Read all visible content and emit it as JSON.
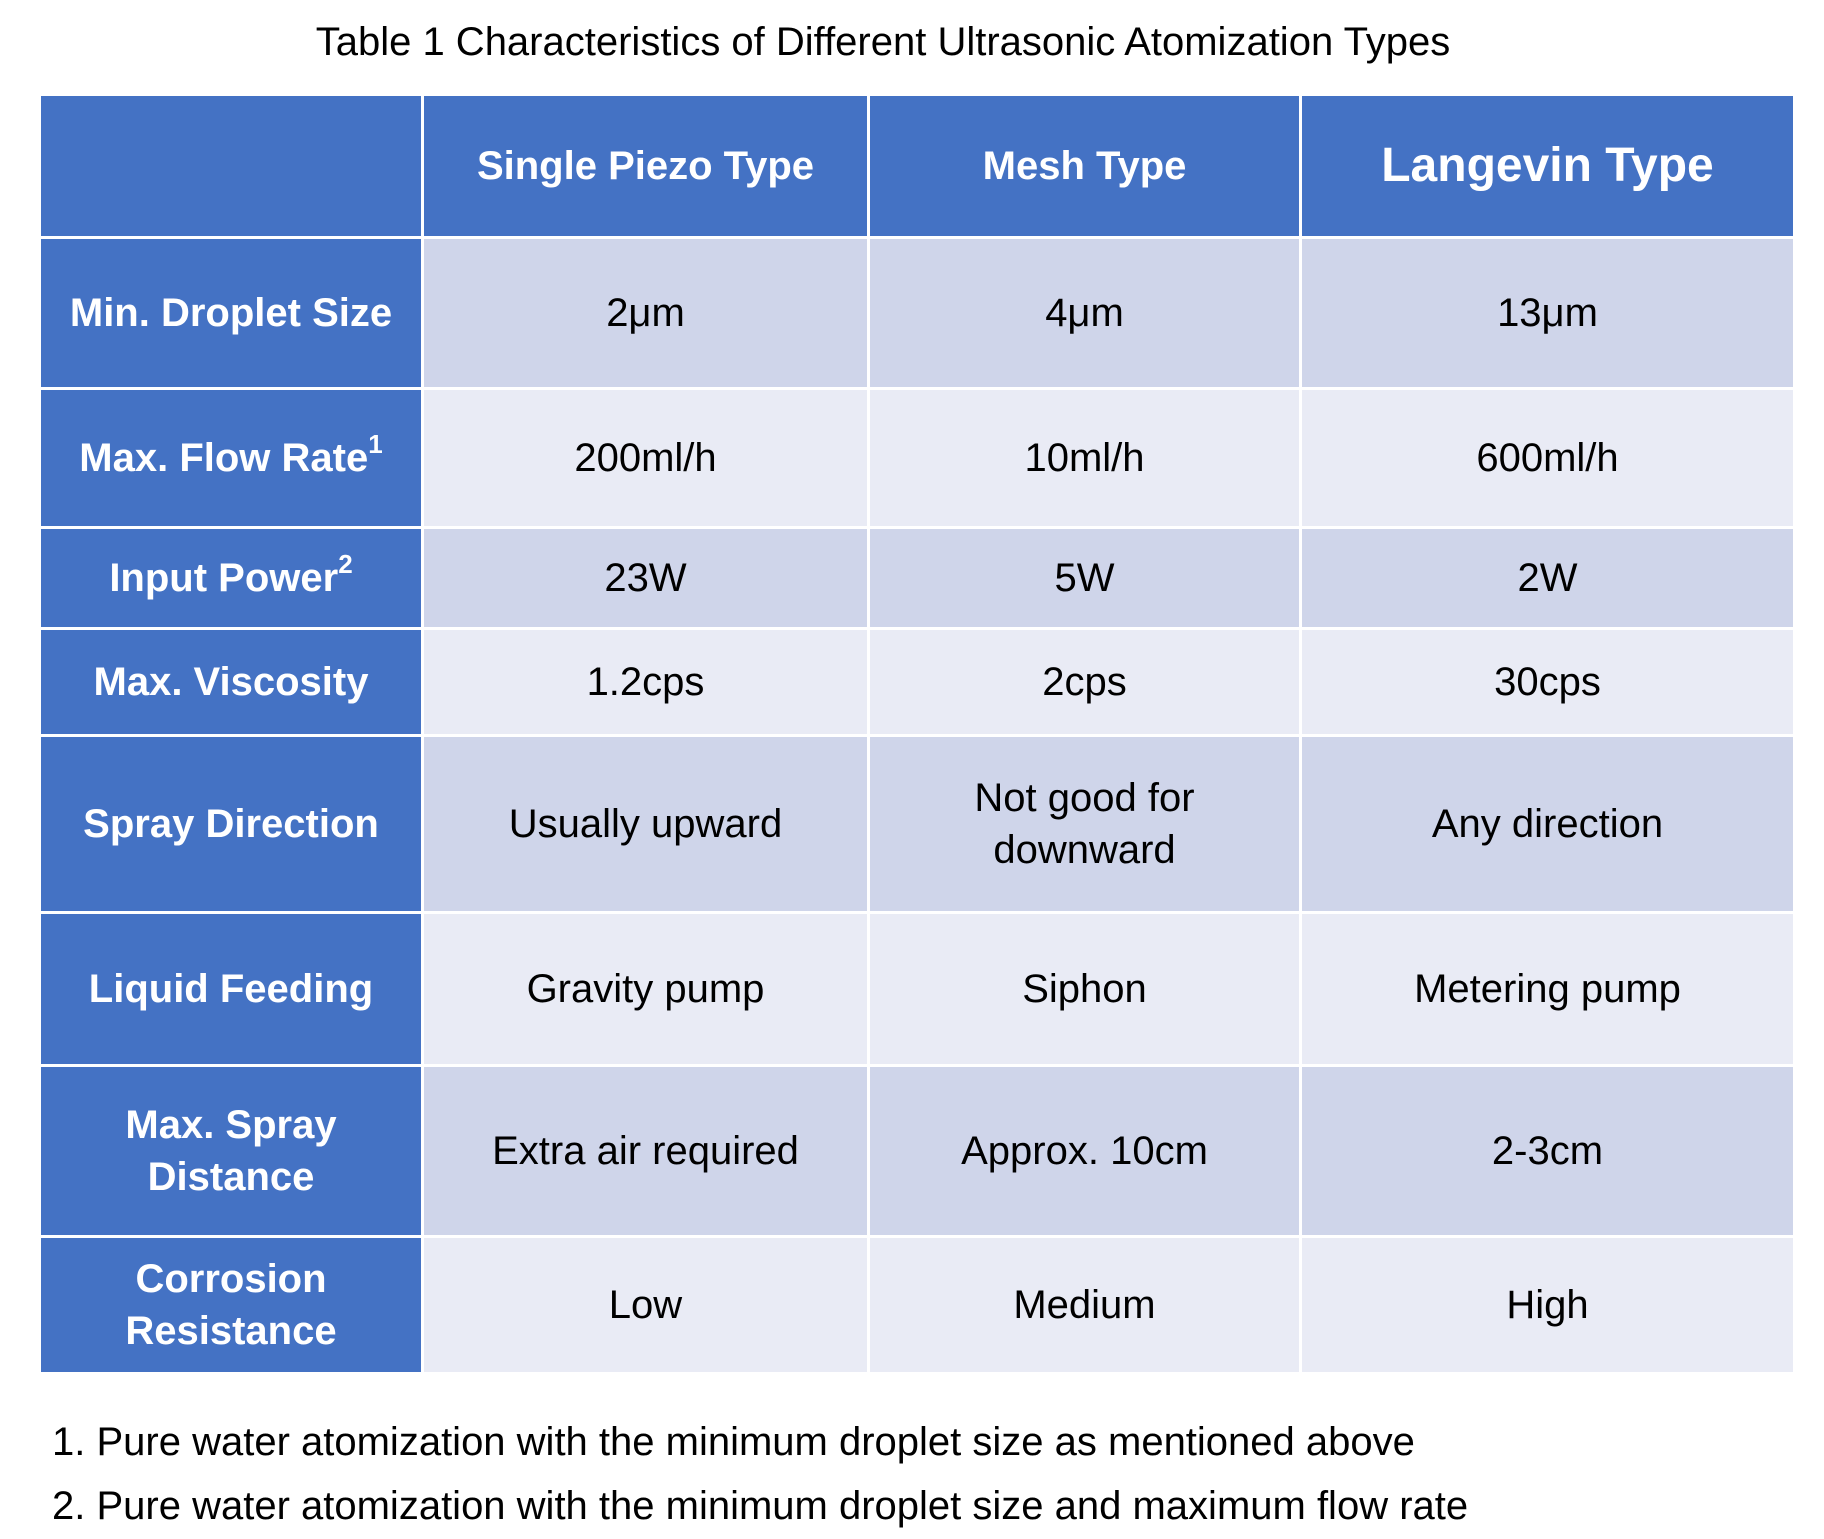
{
  "title": "Table 1 Characteristics of Different Ultrasonic Atomization Types",
  "columns": [
    "",
    "Single Piezo Type",
    "Mesh Type",
    "Langevin Type"
  ],
  "rows": [
    {
      "label": "Min. Droplet Size",
      "sup": "",
      "values": [
        "2μm",
        "4μm",
        "13μm"
      ]
    },
    {
      "label": "Max. Flow Rate",
      "sup": "1",
      "values": [
        "200ml/h",
        "10ml/h",
        "600ml/h"
      ]
    },
    {
      "label": "Input Power",
      "sup": "2",
      "values": [
        "23W",
        "5W",
        "2W"
      ]
    },
    {
      "label": "Max. Viscosity",
      "sup": "",
      "values": [
        "1.2cps",
        "2cps",
        "30cps"
      ]
    },
    {
      "label": "Spray Direction",
      "sup": "",
      "values": [
        "Usually upward",
        "Not good for downward",
        "Any direction"
      ]
    },
    {
      "label": "Liquid Feeding",
      "sup": "",
      "values": [
        "Gravity pump",
        "Siphon",
        "Metering pump"
      ]
    },
    {
      "label": "Max. Spray Distance",
      "sup": "",
      "values": [
        "Extra air required",
        "Approx. 10cm",
        "2-3cm"
      ]
    },
    {
      "label": "Corrosion Resistance",
      "sup": "",
      "values": [
        "Low",
        "Medium",
        "High"
      ]
    }
  ],
  "notes": [
    "1. Pure water atomization with the minimum droplet size as mentioned above",
    "2. Pure water atomization with the minimum droplet size and maximum flow rate"
  ],
  "colors": {
    "header": "#4472C4",
    "band_dark": "#CFD5EA",
    "band_light": "#E9EBF5"
  }
}
